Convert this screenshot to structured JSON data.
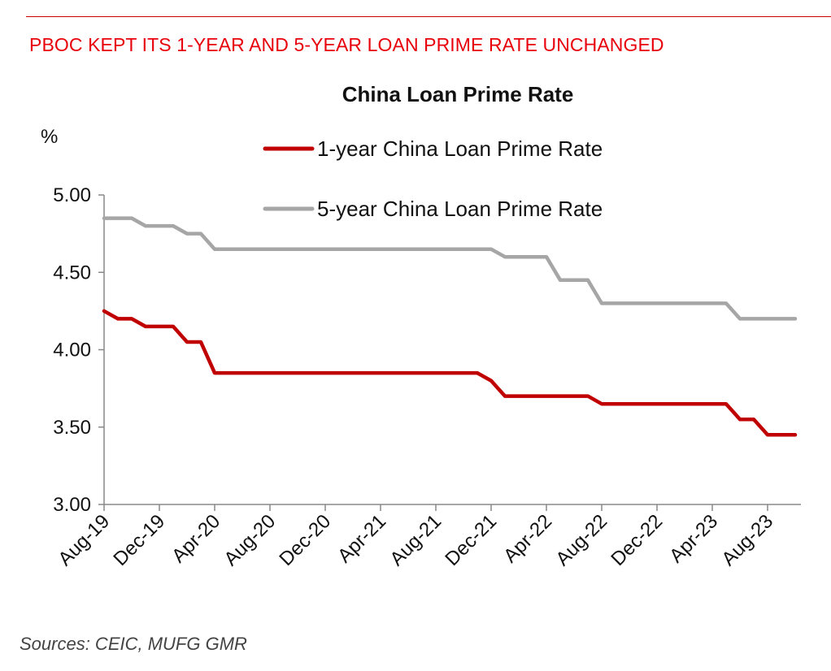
{
  "headline": "PBOC KEPT ITS 1-YEAR AND 5-YEAR LOAN PRIME RATE UNCHANGED",
  "source": "Sources:  CEIC, MUFG GMR",
  "colors": {
    "accent": "#e8000b",
    "series_1y": "#c00000",
    "series_5y": "#a6a6a6",
    "axis": "#888888"
  },
  "chart_data": {
    "type": "line",
    "title": "China Loan Prime Rate",
    "ylabel": "%",
    "ylim": [
      3.0,
      5.0
    ],
    "yticks": [
      "3.00",
      "3.50",
      "4.00",
      "4.50",
      "5.00"
    ],
    "x_tick_labels": [
      "Aug-19",
      "Dec-19",
      "Apr-20",
      "Aug-20",
      "Dec-20",
      "Apr-21",
      "Aug-21",
      "Dec-21",
      "Apr-22",
      "Aug-22",
      "Dec-22",
      "Apr-23",
      "Aug-23"
    ],
    "x": [
      "Aug-19",
      "Sep-19",
      "Oct-19",
      "Nov-19",
      "Dec-19",
      "Jan-20",
      "Feb-20",
      "Mar-20",
      "Apr-20",
      "May-20",
      "Jun-20",
      "Jul-20",
      "Aug-20",
      "Sep-20",
      "Oct-20",
      "Nov-20",
      "Dec-20",
      "Jan-21",
      "Feb-21",
      "Mar-21",
      "Apr-21",
      "May-21",
      "Jun-21",
      "Jul-21",
      "Aug-21",
      "Sep-21",
      "Oct-21",
      "Nov-21",
      "Dec-21",
      "Jan-22",
      "Feb-22",
      "Mar-22",
      "Apr-22",
      "May-22",
      "Jun-22",
      "Jul-22",
      "Aug-22",
      "Sep-22",
      "Oct-22",
      "Nov-22",
      "Dec-22",
      "Jan-23",
      "Feb-23",
      "Mar-23",
      "Apr-23",
      "May-23",
      "Jun-23",
      "Jul-23",
      "Aug-23",
      "Sep-23",
      "Oct-23"
    ],
    "series": [
      {
        "name": "1-year China Loan Prime Rate",
        "values": [
          4.25,
          4.2,
          4.2,
          4.15,
          4.15,
          4.15,
          4.05,
          4.05,
          3.85,
          3.85,
          3.85,
          3.85,
          3.85,
          3.85,
          3.85,
          3.85,
          3.85,
          3.85,
          3.85,
          3.85,
          3.85,
          3.85,
          3.85,
          3.85,
          3.85,
          3.85,
          3.85,
          3.85,
          3.8,
          3.7,
          3.7,
          3.7,
          3.7,
          3.7,
          3.7,
          3.7,
          3.65,
          3.65,
          3.65,
          3.65,
          3.65,
          3.65,
          3.65,
          3.65,
          3.65,
          3.65,
          3.55,
          3.55,
          3.45,
          3.45,
          3.45
        ]
      },
      {
        "name": "5-year China Loan Prime Rate",
        "values": [
          4.85,
          4.85,
          4.85,
          4.8,
          4.8,
          4.8,
          4.75,
          4.75,
          4.65,
          4.65,
          4.65,
          4.65,
          4.65,
          4.65,
          4.65,
          4.65,
          4.65,
          4.65,
          4.65,
          4.65,
          4.65,
          4.65,
          4.65,
          4.65,
          4.65,
          4.65,
          4.65,
          4.65,
          4.65,
          4.6,
          4.6,
          4.6,
          4.6,
          4.45,
          4.45,
          4.45,
          4.3,
          4.3,
          4.3,
          4.3,
          4.3,
          4.3,
          4.3,
          4.3,
          4.3,
          4.3,
          4.2,
          4.2,
          4.2,
          4.2,
          4.2
        ]
      }
    ],
    "legend_position": "top",
    "grid": false
  }
}
